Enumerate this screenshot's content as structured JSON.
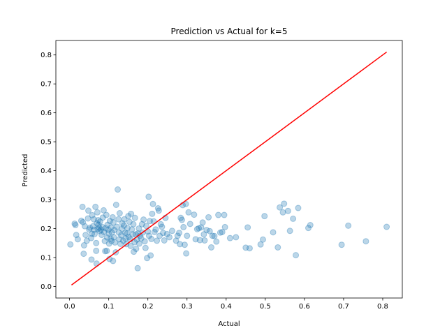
{
  "chart_data": {
    "type": "scatter",
    "title": "Prediction vs Actual for k=5",
    "xlabel": "Actual",
    "ylabel": "Predicted",
    "xlim": [
      -0.035,
      0.85
    ],
    "ylim": [
      -0.04,
      0.85
    ],
    "xticks": [
      "0.0",
      "0.1",
      "0.2",
      "0.3",
      "0.4",
      "0.5",
      "0.6",
      "0.7",
      "0.8"
    ],
    "yticks": [
      "0.0",
      "0.1",
      "0.2",
      "0.3",
      "0.4",
      "0.5",
      "0.6",
      "0.7",
      "0.8"
    ],
    "grid": false,
    "colors": {
      "points": "#1f77b4",
      "reference_line": "#ff0000"
    },
    "reference_line": {
      "x": [
        0.005,
        0.81
      ],
      "y": [
        0.005,
        0.81
      ]
    },
    "points": [
      [
        0.002,
        0.145
      ],
      [
        0.013,
        0.217
      ],
      [
        0.015,
        0.212
      ],
      [
        0.017,
        0.178
      ],
      [
        0.021,
        0.163
      ],
      [
        0.03,
        0.227
      ],
      [
        0.033,
        0.275
      ],
      [
        0.034,
        0.222
      ],
      [
        0.036,
        0.113
      ],
      [
        0.037,
        0.142
      ],
      [
        0.039,
        0.208
      ],
      [
        0.041,
        0.178
      ],
      [
        0.044,
        0.158
      ],
      [
        0.047,
        0.235
      ],
      [
        0.048,
        0.262
      ],
      [
        0.05,
        0.197
      ],
      [
        0.052,
        0.203
      ],
      [
        0.055,
        0.167
      ],
      [
        0.056,
        0.093
      ],
      [
        0.057,
        0.182
      ],
      [
        0.058,
        0.246
      ],
      [
        0.06,
        0.208
      ],
      [
        0.062,
        0.232
      ],
      [
        0.063,
        0.196
      ],
      [
        0.064,
        0.181
      ],
      [
        0.066,
        0.275
      ],
      [
        0.068,
        0.15
      ],
      [
        0.068,
        0.123
      ],
      [
        0.069,
        0.079
      ],
      [
        0.07,
        0.218
      ],
      [
        0.071,
        0.256
      ],
      [
        0.072,
        0.198
      ],
      [
        0.073,
        0.229
      ],
      [
        0.074,
        0.213
      ],
      [
        0.076,
        0.203
      ],
      [
        0.077,
        0.191
      ],
      [
        0.078,
        0.224
      ],
      [
        0.08,
        0.196
      ],
      [
        0.082,
        0.178
      ],
      [
        0.084,
        0.205
      ],
      [
        0.085,
        0.238
      ],
      [
        0.087,
        0.263
      ],
      [
        0.088,
        0.188
      ],
      [
        0.09,
        0.157
      ],
      [
        0.091,
        0.122
      ],
      [
        0.092,
        0.201
      ],
      [
        0.094,
        0.247
      ],
      [
        0.095,
        0.123
      ],
      [
        0.096,
        0.169
      ],
      [
        0.097,
        0.213
      ],
      [
        0.099,
        0.196
      ],
      [
        0.1,
        0.183
      ],
      [
        0.101,
        0.148
      ],
      [
        0.102,
        0.095
      ],
      [
        0.103,
        0.226
      ],
      [
        0.105,
        0.165
      ],
      [
        0.106,
        0.204
      ],
      [
        0.107,
        0.157
      ],
      [
        0.108,
        0.186
      ],
      [
        0.11,
        0.239
      ],
      [
        0.111,
        0.088
      ],
      [
        0.112,
        0.221
      ],
      [
        0.113,
        0.17
      ],
      [
        0.114,
        0.195
      ],
      [
        0.116,
        0.152
      ],
      [
        0.118,
        0.118
      ],
      [
        0.119,
        0.282
      ],
      [
        0.121,
        0.206
      ],
      [
        0.123,
        0.335
      ],
      [
        0.125,
        0.232
      ],
      [
        0.126,
        0.186
      ],
      [
        0.127,
        0.163
      ],
      [
        0.128,
        0.253
      ],
      [
        0.13,
        0.147
      ],
      [
        0.132,
        0.177
      ],
      [
        0.134,
        0.199
      ],
      [
        0.135,
        0.218
      ],
      [
        0.137,
        0.158
      ],
      [
        0.139,
        0.21
      ],
      [
        0.14,
        0.232
      ],
      [
        0.142,
        0.185
      ],
      [
        0.143,
        0.165
      ],
      [
        0.145,
        0.146
      ],
      [
        0.147,
        0.183
      ],
      [
        0.148,
        0.202
      ],
      [
        0.15,
        0.243
      ],
      [
        0.151,
        0.171
      ],
      [
        0.153,
        0.223
      ],
      [
        0.155,
        0.163
      ],
      [
        0.156,
        0.14
      ],
      [
        0.157,
        0.251
      ],
      [
        0.159,
        0.197
      ],
      [
        0.161,
        0.18
      ],
      [
        0.163,
        0.215
      ],
      [
        0.164,
        0.12
      ],
      [
        0.166,
        0.153
      ],
      [
        0.167,
        0.237
      ],
      [
        0.169,
        0.18
      ],
      [
        0.17,
        0.13
      ],
      [
        0.172,
        0.162
      ],
      [
        0.174,
        0.063
      ],
      [
        0.175,
        0.183
      ],
      [
        0.177,
        0.2
      ],
      [
        0.178,
        0.148
      ],
      [
        0.18,
        0.175
      ],
      [
        0.183,
        0.166
      ],
      [
        0.185,
        0.215
      ],
      [
        0.187,
        0.186
      ],
      [
        0.189,
        0.231
      ],
      [
        0.192,
        0.156
      ],
      [
        0.194,
        0.133
      ],
      [
        0.196,
        0.209
      ],
      [
        0.198,
        0.098
      ],
      [
        0.2,
        0.19
      ],
      [
        0.202,
        0.31
      ],
      [
        0.203,
        0.175
      ],
      [
        0.205,
        0.226
      ],
      [
        0.207,
        0.107
      ],
      [
        0.209,
        0.164
      ],
      [
        0.211,
        0.251
      ],
      [
        0.213,
        0.285
      ],
      [
        0.215,
        0.225
      ],
      [
        0.217,
        0.188
      ],
      [
        0.22,
        0.197
      ],
      [
        0.223,
        0.158
      ],
      [
        0.226,
        0.27
      ],
      [
        0.228,
        0.262
      ],
      [
        0.23,
        0.175
      ],
      [
        0.233,
        0.215
      ],
      [
        0.236,
        0.206
      ],
      [
        0.239,
        0.185
      ],
      [
        0.242,
        0.159
      ],
      [
        0.245,
        0.237
      ],
      [
        0.249,
        0.181
      ],
      [
        0.255,
        0.17
      ],
      [
        0.262,
        0.192
      ],
      [
        0.272,
        0.158
      ],
      [
        0.276,
        0.175
      ],
      [
        0.28,
        0.185
      ],
      [
        0.282,
        0.146
      ],
      [
        0.284,
        0.237
      ],
      [
        0.287,
        0.23
      ],
      [
        0.289,
        0.281
      ],
      [
        0.291,
        0.205
      ],
      [
        0.294,
        0.144
      ],
      [
        0.297,
        0.285
      ],
      [
        0.298,
        0.114
      ],
      [
        0.3,
        0.175
      ],
      [
        0.304,
        0.256
      ],
      [
        0.308,
        0.216
      ],
      [
        0.318,
        0.248
      ],
      [
        0.322,
        0.163
      ],
      [
        0.326,
        0.198
      ],
      [
        0.33,
        0.201
      ],
      [
        0.333,
        0.16
      ],
      [
        0.336,
        0.204
      ],
      [
        0.34,
        0.221
      ],
      [
        0.343,
        0.18
      ],
      [
        0.345,
        0.159
      ],
      [
        0.35,
        0.195
      ],
      [
        0.355,
        0.239
      ],
      [
        0.358,
        0.191
      ],
      [
        0.362,
        0.135
      ],
      [
        0.365,
        0.175
      ],
      [
        0.37,
        0.174
      ],
      [
        0.375,
        0.155
      ],
      [
        0.38,
        0.247
      ],
      [
        0.385,
        0.186
      ],
      [
        0.39,
        0.188
      ],
      [
        0.395,
        0.247
      ],
      [
        0.397,
        0.205
      ],
      [
        0.41,
        0.167
      ],
      [
        0.425,
        0.17
      ],
      [
        0.45,
        0.134
      ],
      [
        0.455,
        0.204
      ],
      [
        0.46,
        0.132
      ],
      [
        0.488,
        0.145
      ],
      [
        0.494,
        0.162
      ],
      [
        0.498,
        0.243
      ],
      [
        0.52,
        0.187
      ],
      [
        0.532,
        0.135
      ],
      [
        0.537,
        0.273
      ],
      [
        0.545,
        0.256
      ],
      [
        0.548,
        0.286
      ],
      [
        0.558,
        0.261
      ],
      [
        0.563,
        0.192
      ],
      [
        0.571,
        0.234
      ],
      [
        0.578,
        0.108
      ],
      [
        0.584,
        0.271
      ],
      [
        0.61,
        0.202
      ],
      [
        0.615,
        0.212
      ],
      [
        0.695,
        0.144
      ],
      [
        0.712,
        0.21
      ],
      [
        0.757,
        0.156
      ],
      [
        0.81,
        0.206
      ]
    ]
  }
}
